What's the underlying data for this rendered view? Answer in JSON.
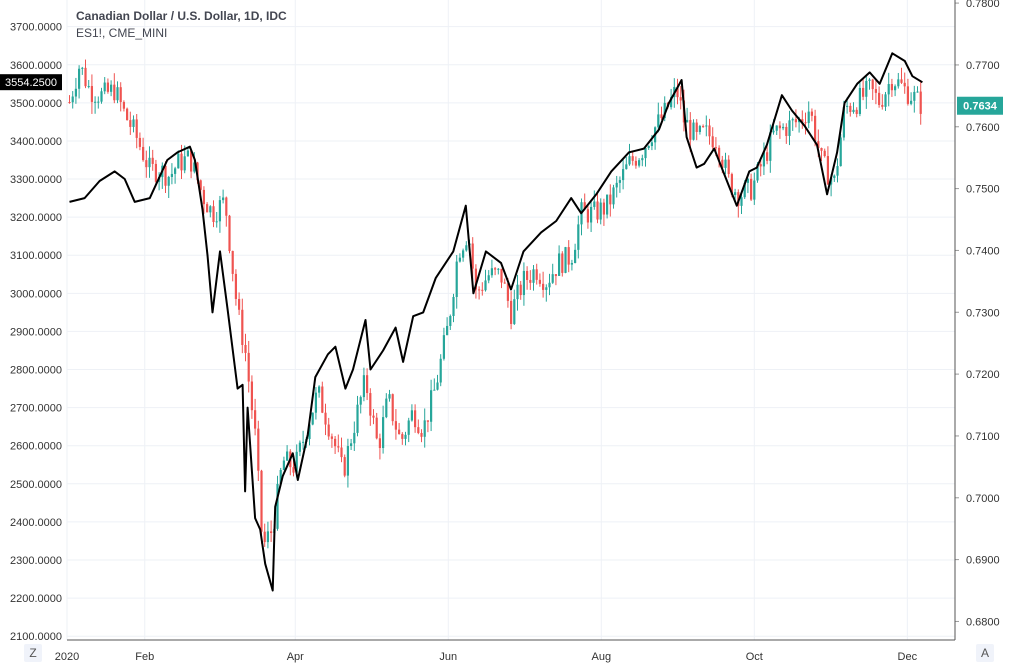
{
  "legend": {
    "main_series": "Canadian Dollar / U.S. Dollar, 1D, IDC",
    "compare_series": "ES1!, CME_MINI"
  },
  "controls": {
    "left_corner": "Z",
    "right_corner": "A"
  },
  "colors": {
    "up": "#26a69a",
    "down": "#ef5350",
    "line": "#000000",
    "grid": "#eef1f6",
    "axis_text": "#333333"
  },
  "chart_data": {
    "type": "line",
    "x_ticks": [
      "2020",
      "Feb",
      "Apr",
      "Jun",
      "Aug",
      "Oct",
      "Dec"
    ],
    "left_axis": {
      "series": "ES1!, CME_MINI",
      "ylim": [
        2090,
        3770
      ],
      "ticks": [
        "3700.0000",
        "3600.0000",
        "3500.0000",
        "3400.0000",
        "3300.0000",
        "3200.0000",
        "3100.0000",
        "3000.0000",
        "2900.0000",
        "2800.0000",
        "2700.0000",
        "2600.0000",
        "2500.0000",
        "2400.0000",
        "2300.0000",
        "2200.0000",
        "2100.0000"
      ],
      "last_value_label": "3554.2500"
    },
    "right_axis": {
      "series": "Canadian Dollar / U.S. Dollar",
      "ylim": [
        0.677,
        0.7805
      ],
      "ticks": [
        "0.7800",
        "0.7700",
        "0.7600",
        "0.7500",
        "0.7400",
        "0.7300",
        "0.7200",
        "0.7100",
        "0.7000",
        "0.6900",
        "0.6800"
      ],
      "last_value_label": "0.7634"
    },
    "series": [
      {
        "name": "ES1!, CME_MINI",
        "style": "line",
        "axis": "left",
        "points": [
          [
            "2020-01-02",
            3240
          ],
          [
            "2020-01-08",
            3250
          ],
          [
            "2020-01-14",
            3295
          ],
          [
            "2020-01-20",
            3320
          ],
          [
            "2020-01-24",
            3300
          ],
          [
            "2020-01-28",
            3240
          ],
          [
            "2020-02-03",
            3250
          ],
          [
            "2020-02-10",
            3350
          ],
          [
            "2020-02-14",
            3370
          ],
          [
            "2020-02-19",
            3385
          ],
          [
            "2020-02-21",
            3350
          ],
          [
            "2020-02-24",
            3220
          ],
          [
            "2020-02-26",
            3100
          ],
          [
            "2020-02-28",
            2950
          ],
          [
            "2020-03-02",
            3110
          ],
          [
            "2020-03-05",
            2960
          ],
          [
            "2020-03-09",
            2750
          ],
          [
            "2020-03-11",
            2760
          ],
          [
            "2020-03-12",
            2480
          ],
          [
            "2020-03-13",
            2700
          ],
          [
            "2020-03-16",
            2410
          ],
          [
            "2020-03-18",
            2380
          ],
          [
            "2020-03-20",
            2290
          ],
          [
            "2020-03-23",
            2220
          ],
          [
            "2020-03-24",
            2440
          ],
          [
            "2020-03-27",
            2520
          ],
          [
            "2020-03-31",
            2580
          ],
          [
            "2020-04-02",
            2510
          ],
          [
            "2020-04-06",
            2630
          ],
          [
            "2020-04-09",
            2780
          ],
          [
            "2020-04-14",
            2840
          ],
          [
            "2020-04-17",
            2860
          ],
          [
            "2020-04-21",
            2750
          ],
          [
            "2020-04-24",
            2800
          ],
          [
            "2020-04-29",
            2930
          ],
          [
            "2020-05-01",
            2800
          ],
          [
            "2020-05-06",
            2850
          ],
          [
            "2020-05-11",
            2910
          ],
          [
            "2020-05-14",
            2820
          ],
          [
            "2020-05-18",
            2940
          ],
          [
            "2020-05-22",
            2950
          ],
          [
            "2020-05-27",
            3040
          ],
          [
            "2020-06-03",
            3110
          ],
          [
            "2020-06-08",
            3230
          ],
          [
            "2020-06-11",
            3000
          ],
          [
            "2020-06-16",
            3110
          ],
          [
            "2020-06-22",
            3080
          ],
          [
            "2020-06-26",
            3010
          ],
          [
            "2020-07-01",
            3110
          ],
          [
            "2020-07-08",
            3160
          ],
          [
            "2020-07-14",
            3190
          ],
          [
            "2020-07-20",
            3250
          ],
          [
            "2020-07-24",
            3210
          ],
          [
            "2020-07-30",
            3260
          ],
          [
            "2020-08-05",
            3320
          ],
          [
            "2020-08-12",
            3370
          ],
          [
            "2020-08-18",
            3380
          ],
          [
            "2020-08-24",
            3430
          ],
          [
            "2020-08-28",
            3500
          ],
          [
            "2020-09-02",
            3560
          ],
          [
            "2020-09-04",
            3410
          ],
          [
            "2020-09-08",
            3330
          ],
          [
            "2020-09-11",
            3340
          ],
          [
            "2020-09-15",
            3380
          ],
          [
            "2020-09-21",
            3280
          ],
          [
            "2020-09-24",
            3230
          ],
          [
            "2020-09-29",
            3320
          ],
          [
            "2020-10-02",
            3330
          ],
          [
            "2020-10-06",
            3390
          ],
          [
            "2020-10-12",
            3520
          ],
          [
            "2020-10-16",
            3480
          ],
          [
            "2020-10-21",
            3440
          ],
          [
            "2020-10-26",
            3390
          ],
          [
            "2020-10-30",
            3260
          ],
          [
            "2020-11-03",
            3370
          ],
          [
            "2020-11-06",
            3500
          ],
          [
            "2020-11-11",
            3550
          ],
          [
            "2020-11-16",
            3580
          ],
          [
            "2020-11-20",
            3550
          ],
          [
            "2020-11-25",
            3630
          ],
          [
            "2020-11-30",
            3610
          ],
          [
            "2020-12-03",
            3570
          ],
          [
            "2020-12-07",
            3554
          ]
        ]
      },
      {
        "name": "Canadian Dollar / U.S. Dollar",
        "style": "candlestick",
        "axis": "right",
        "points": [
          [
            "2020-01-02",
            0.764
          ],
          [
            "2020-01-06",
            0.77
          ],
          [
            "2020-01-10",
            0.766
          ],
          [
            "2020-01-15",
            0.765
          ],
          [
            "2020-01-20",
            0.766
          ],
          [
            "2020-01-24",
            0.762
          ],
          [
            "2020-01-28",
            0.759
          ],
          [
            "2020-02-03",
            0.753
          ],
          [
            "2020-02-07",
            0.753
          ],
          [
            "2020-02-11",
            0.752
          ],
          [
            "2020-02-14",
            0.754
          ],
          [
            "2020-02-19",
            0.755
          ],
          [
            "2020-02-24",
            0.749
          ],
          [
            "2020-02-28",
            0.746
          ],
          [
            "2020-03-04",
            0.748
          ],
          [
            "2020-03-09",
            0.73
          ],
          [
            "2020-03-12",
            0.724
          ],
          [
            "2020-03-16",
            0.71
          ],
          [
            "2020-03-19",
            0.692
          ],
          [
            "2020-03-23",
            0.695
          ],
          [
            "2020-03-27",
            0.706
          ],
          [
            "2020-04-01",
            0.705
          ],
          [
            "2020-04-06",
            0.712
          ],
          [
            "2020-04-10",
            0.717
          ],
          [
            "2020-04-15",
            0.711
          ],
          [
            "2020-04-20",
            0.704
          ],
          [
            "2020-04-24",
            0.711
          ],
          [
            "2020-04-29",
            0.719
          ],
          [
            "2020-05-04",
            0.708
          ],
          [
            "2020-05-08",
            0.716
          ],
          [
            "2020-05-13",
            0.709
          ],
          [
            "2020-05-18",
            0.714
          ],
          [
            "2020-05-22",
            0.711
          ],
          [
            "2020-05-27",
            0.718
          ],
          [
            "2020-06-01",
            0.728
          ],
          [
            "2020-06-05",
            0.74
          ],
          [
            "2020-06-09",
            0.743
          ],
          [
            "2020-06-12",
            0.733
          ],
          [
            "2020-06-17",
            0.736
          ],
          [
            "2020-06-22",
            0.736
          ],
          [
            "2020-06-26",
            0.73
          ],
          [
            "2020-07-01",
            0.735
          ],
          [
            "2020-07-06",
            0.737
          ],
          [
            "2020-07-10",
            0.735
          ],
          [
            "2020-07-15",
            0.738
          ],
          [
            "2020-07-20",
            0.739
          ],
          [
            "2020-07-24",
            0.746
          ],
          [
            "2020-07-29",
            0.746
          ],
          [
            "2020-08-03",
            0.747
          ],
          [
            "2020-08-07",
            0.75
          ],
          [
            "2020-08-12",
            0.754
          ],
          [
            "2020-08-17",
            0.756
          ],
          [
            "2020-08-21",
            0.759
          ],
          [
            "2020-08-26",
            0.762
          ],
          [
            "2020-08-31",
            0.766
          ],
          [
            "2020-09-03",
            0.761
          ],
          [
            "2020-09-08",
            0.758
          ],
          [
            "2020-09-11",
            0.759
          ],
          [
            "2020-09-16",
            0.758
          ],
          [
            "2020-09-21",
            0.751
          ],
          [
            "2020-09-25",
            0.749
          ],
          [
            "2020-09-30",
            0.75
          ],
          [
            "2020-10-05",
            0.755
          ],
          [
            "2020-10-09",
            0.759
          ],
          [
            "2020-10-14",
            0.76
          ],
          [
            "2020-10-19",
            0.761
          ],
          [
            "2020-10-23",
            0.763
          ],
          [
            "2020-10-28",
            0.754
          ],
          [
            "2020-11-02",
            0.751
          ],
          [
            "2020-11-06",
            0.763
          ],
          [
            "2020-11-11",
            0.764
          ],
          [
            "2020-11-16",
            0.766
          ],
          [
            "2020-11-20",
            0.764
          ],
          [
            "2020-11-25",
            0.768
          ],
          [
            "2020-11-30",
            0.766
          ],
          [
            "2020-12-03",
            0.765
          ],
          [
            "2020-12-07",
            0.7634
          ]
        ]
      }
    ],
    "grid": true,
    "legend": "top-left"
  }
}
